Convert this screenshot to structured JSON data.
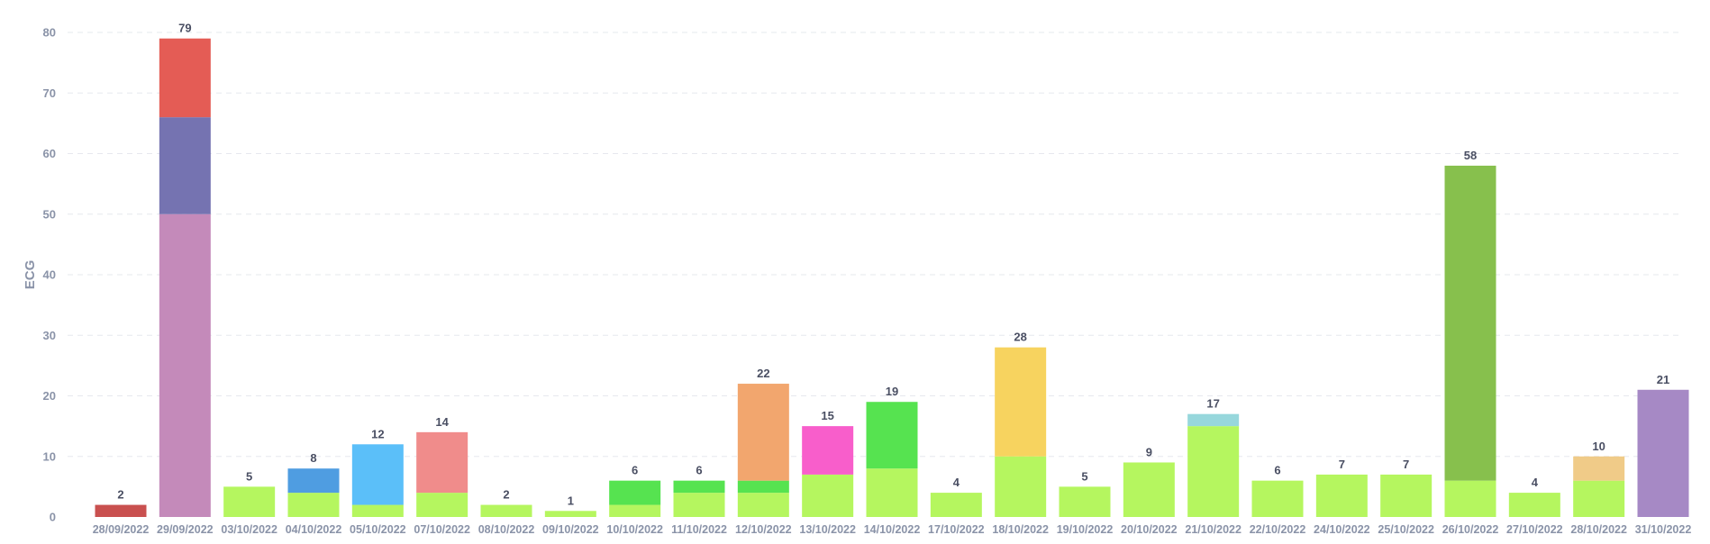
{
  "chart_data": {
    "type": "bar",
    "stacked": true,
    "ylabel": "ECG",
    "ylim": [
      0,
      80
    ],
    "yticks": [
      0,
      10,
      20,
      30,
      40,
      50,
      60,
      70,
      80
    ],
    "grid": true,
    "legend": "none",
    "categories": [
      "28/09/2022",
      "29/09/2022",
      "03/10/2022",
      "04/10/2022",
      "05/10/2022",
      "07/10/2022",
      "08/10/2022",
      "09/10/2022",
      "10/10/2022",
      "11/10/2022",
      "12/10/2022",
      "13/10/2022",
      "14/10/2022",
      "17/10/2022",
      "18/10/2022",
      "19/10/2022",
      "20/10/2022",
      "21/10/2022",
      "22/10/2022",
      "24/10/2022",
      "25/10/2022",
      "26/10/2022",
      "27/10/2022",
      "28/10/2022",
      "31/10/2022"
    ],
    "totals": [
      2,
      79,
      5,
      8,
      12,
      14,
      2,
      1,
      6,
      6,
      22,
      15,
      19,
      4,
      28,
      5,
      9,
      17,
      6,
      7,
      7,
      58,
      4,
      10,
      21
    ],
    "stacks": [
      [
        {
          "value": 2,
          "color": "#c9504f"
        }
      ],
      [
        {
          "value": 50,
          "color": "#c48aba"
        },
        {
          "value": 16,
          "color": "#7573b1"
        },
        {
          "value": 13,
          "color": "#e45c55"
        }
      ],
      [
        {
          "value": 5,
          "color": "#b5f65f"
        }
      ],
      [
        {
          "value": 4,
          "color": "#b5f65f"
        },
        {
          "value": 4,
          "color": "#4f9de1"
        }
      ],
      [
        {
          "value": 2,
          "color": "#b5f65f"
        },
        {
          "value": 10,
          "color": "#5bbff9"
        }
      ],
      [
        {
          "value": 4,
          "color": "#b5f65f"
        },
        {
          "value": 10,
          "color": "#f08c8b"
        }
      ],
      [
        {
          "value": 2,
          "color": "#b5f65f"
        }
      ],
      [
        {
          "value": 1,
          "color": "#b5f65f"
        }
      ],
      [
        {
          "value": 2,
          "color": "#b5f65f"
        },
        {
          "value": 4,
          "color": "#56e350"
        }
      ],
      [
        {
          "value": 4,
          "color": "#b5f65f"
        },
        {
          "value": 2,
          "color": "#56e350"
        }
      ],
      [
        {
          "value": 4,
          "color": "#b5f65f"
        },
        {
          "value": 2,
          "color": "#56e350"
        },
        {
          "value": 16,
          "color": "#f2a66e"
        }
      ],
      [
        {
          "value": 7,
          "color": "#b5f65f"
        },
        {
          "value": 8,
          "color": "#f85ecb"
        }
      ],
      [
        {
          "value": 8,
          "color": "#b5f65f"
        },
        {
          "value": 11,
          "color": "#56e350"
        }
      ],
      [
        {
          "value": 4,
          "color": "#b5f65f"
        }
      ],
      [
        {
          "value": 10,
          "color": "#b5f65f"
        },
        {
          "value": 18,
          "color": "#f7d35f"
        }
      ],
      [
        {
          "value": 5,
          "color": "#b5f65f"
        }
      ],
      [
        {
          "value": 9,
          "color": "#b5f65f"
        }
      ],
      [
        {
          "value": 15,
          "color": "#b5f65f"
        },
        {
          "value": 2,
          "color": "#97d7dc"
        }
      ],
      [
        {
          "value": 6,
          "color": "#b5f65f"
        }
      ],
      [
        {
          "value": 7,
          "color": "#b5f65f"
        }
      ],
      [
        {
          "value": 7,
          "color": "#b5f65f"
        }
      ],
      [
        {
          "value": 6,
          "color": "#b5f65f"
        },
        {
          "value": 52,
          "color": "#87c04d"
        }
      ],
      [
        {
          "value": 4,
          "color": "#b5f65f"
        }
      ],
      [
        {
          "value": 6,
          "color": "#b5f65f"
        },
        {
          "value": 4,
          "color": "#f0cb88"
        }
      ],
      [
        {
          "value": 21,
          "color": "#a689c5"
        }
      ]
    ]
  }
}
